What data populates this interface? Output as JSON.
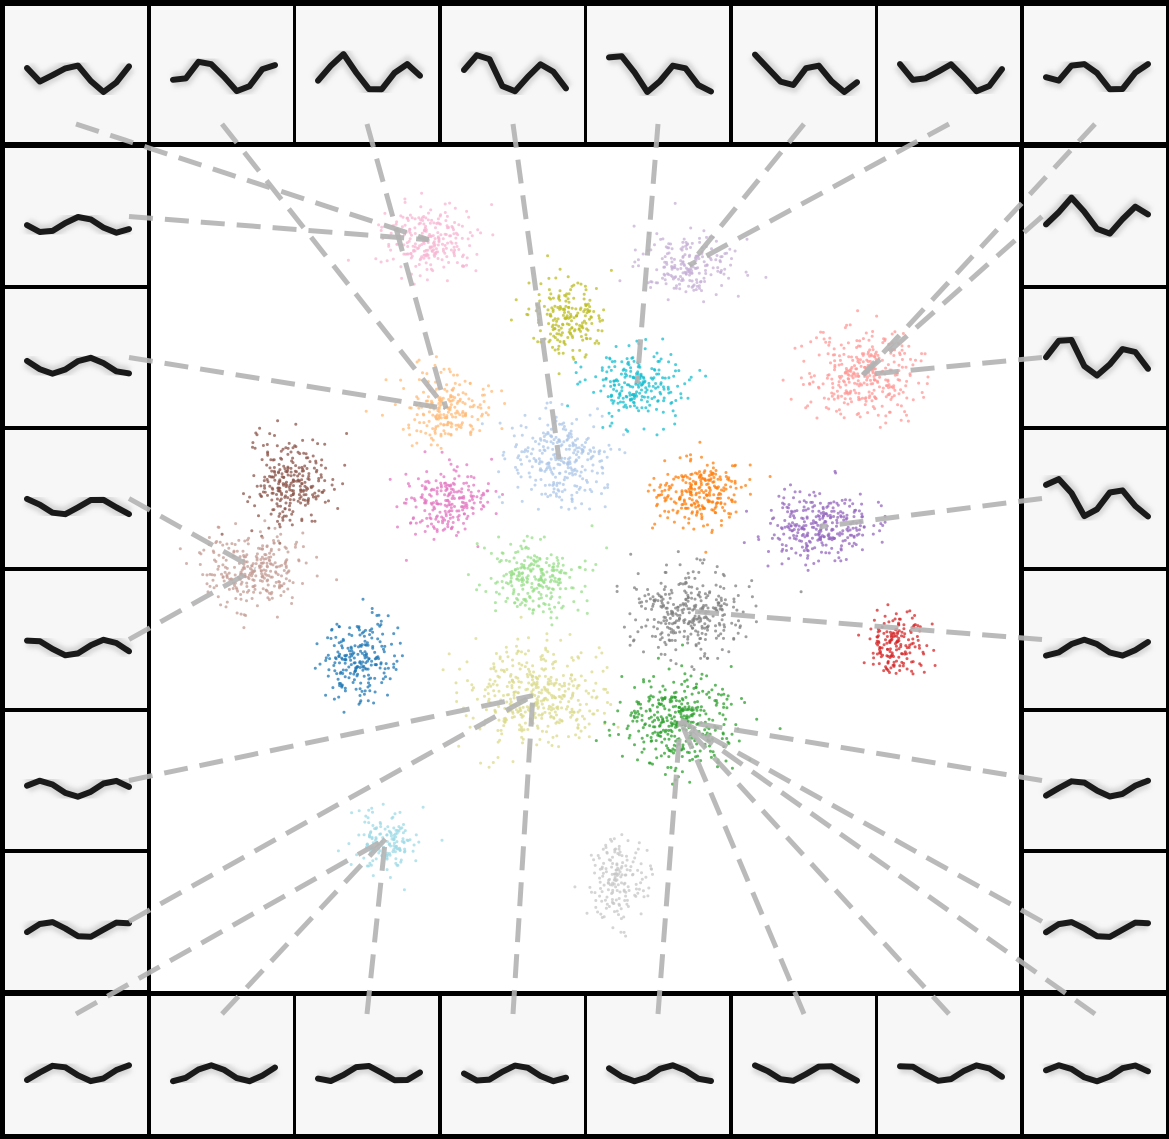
{
  "figure": {
    "title": "",
    "thumbnail_count": 28
  },
  "chart_data": {
    "type": "scatter",
    "title": "",
    "xlabel": "",
    "ylabel": "",
    "grid": false,
    "legend": "none",
    "axes_visible": false,
    "xlim": [
      0,
      100
    ],
    "ylim": [
      0,
      100
    ],
    "clusters": [
      {
        "id": "c0",
        "color": "#f7b6d2",
        "center": [
          32,
          89
        ],
        "spread": [
          3.8,
          3.0
        ],
        "points": 240
      },
      {
        "id": "c1",
        "color": "#bcbd22",
        "center": [
          48,
          80
        ],
        "spread": [
          3.2,
          3.0
        ],
        "points": 200
      },
      {
        "id": "c2",
        "color": "#c5b0d5",
        "center": [
          62,
          86
        ],
        "spread": [
          4.0,
          2.6
        ],
        "points": 200
      },
      {
        "id": "c3",
        "color": "#ff9896",
        "center": [
          82,
          73
        ],
        "spread": [
          4.5,
          3.8
        ],
        "points": 330
      },
      {
        "id": "c4",
        "color": "#ffbb78",
        "center": [
          34,
          69
        ],
        "spread": [
          3.5,
          2.8
        ],
        "points": 220
      },
      {
        "id": "c5",
        "color": "#17becf",
        "center": [
          56,
          72
        ],
        "spread": [
          3.8,
          3.0
        ],
        "points": 230
      },
      {
        "id": "c6",
        "color": "#aec7e8",
        "center": [
          47,
          63
        ],
        "spread": [
          3.8,
          4.0
        ],
        "points": 280
      },
      {
        "id": "c7",
        "color": "#8c564b",
        "center": [
          16,
          60
        ],
        "spread": [
          3.3,
          4.0
        ],
        "points": 270
      },
      {
        "id": "c8",
        "color": "#e377c2",
        "center": [
          34,
          58
        ],
        "spread": [
          3.3,
          2.8
        ],
        "points": 220
      },
      {
        "id": "c9",
        "color": "#ff7f0e",
        "center": [
          63,
          59
        ],
        "spread": [
          3.6,
          2.8
        ],
        "points": 260
      },
      {
        "id": "c10",
        "color": "#9467bd",
        "center": [
          77,
          55
        ],
        "spread": [
          4.2,
          3.0
        ],
        "points": 300
      },
      {
        "id": "c11",
        "color": "#c49c94",
        "center": [
          12,
          50
        ],
        "spread": [
          4.5,
          3.0
        ],
        "points": 280
      },
      {
        "id": "c12",
        "color": "#98df8a",
        "center": [
          44,
          49
        ],
        "spread": [
          3.8,
          2.9
        ],
        "points": 250
      },
      {
        "id": "c13",
        "color": "#7f7f7f",
        "center": [
          62,
          45
        ],
        "spread": [
          4.3,
          3.6
        ],
        "points": 330
      },
      {
        "id": "c14",
        "color": "#d62728",
        "center": [
          86,
          41
        ],
        "spread": [
          2.5,
          2.5
        ],
        "points": 170
      },
      {
        "id": "c15",
        "color": "#1f77b4",
        "center": [
          24,
          39
        ],
        "spread": [
          3.0,
          3.6
        ],
        "points": 220
      },
      {
        "id": "c16",
        "color": "#dbdb8d",
        "center": [
          44,
          35
        ],
        "spread": [
          5.8,
          4.0
        ],
        "points": 420
      },
      {
        "id": "c17",
        "color": "#2ca02c",
        "center": [
          61,
          32
        ],
        "spread": [
          4.6,
          3.8
        ],
        "points": 380
      },
      {
        "id": "c18",
        "color": "#9edae5",
        "center": [
          27,
          18
        ],
        "spread": [
          2.6,
          2.6
        ],
        "points": 150
      },
      {
        "id": "c19",
        "color": "#c7c7c7",
        "center": [
          54,
          13
        ],
        "spread": [
          2.4,
          3.6
        ],
        "points": 170
      }
    ],
    "exemplars": [
      {
        "cluster": "c0",
        "thumbnail": 0
      },
      {
        "cluster": "c4",
        "thumbnail": 1
      },
      {
        "cluster": "c4",
        "thumbnail": 2
      },
      {
        "cluster": "c6",
        "thumbnail": 3
      },
      {
        "cluster": "c5",
        "thumbnail": 4
      },
      {
        "cluster": "c2",
        "thumbnail": 5
      },
      {
        "cluster": "c2",
        "thumbnail": 6
      },
      {
        "cluster": "c3",
        "thumbnail": 7
      },
      {
        "cluster": "c3",
        "thumbnail": 8
      },
      {
        "cluster": "c3",
        "thumbnail": 9
      },
      {
        "cluster": "c10",
        "thumbnail": 10
      },
      {
        "cluster": "c13",
        "thumbnail": 11
      },
      {
        "cluster": "c17",
        "thumbnail": 12
      },
      {
        "cluster": "c17",
        "thumbnail": 13
      },
      {
        "cluster": "c17",
        "thumbnail": 14
      },
      {
        "cluster": "c17",
        "thumbnail": 15
      },
      {
        "cluster": "c17",
        "thumbnail": 16
      },
      {
        "cluster": "c17",
        "thumbnail": 17
      },
      {
        "cluster": "c16",
        "thumbnail": 18
      },
      {
        "cluster": "c18",
        "thumbnail": 19
      },
      {
        "cluster": "c18",
        "thumbnail": 20
      },
      {
        "cluster": "c18",
        "thumbnail": 21
      },
      {
        "cluster": "c16",
        "thumbnail": 22
      },
      {
        "cluster": "c16",
        "thumbnail": 23
      },
      {
        "cluster": "c11",
        "thumbnail": 24
      },
      {
        "cluster": "c11",
        "thumbnail": 25
      },
      {
        "cluster": "c4",
        "thumbnail": 26
      },
      {
        "cluster": "c0",
        "thumbnail": 27
      }
    ]
  },
  "style": {
    "frame_color": "#000000",
    "thumb_background": "#f7f7f7",
    "ink_color": "#1a1a1a",
    "connector_color": "#b3b3b3"
  }
}
